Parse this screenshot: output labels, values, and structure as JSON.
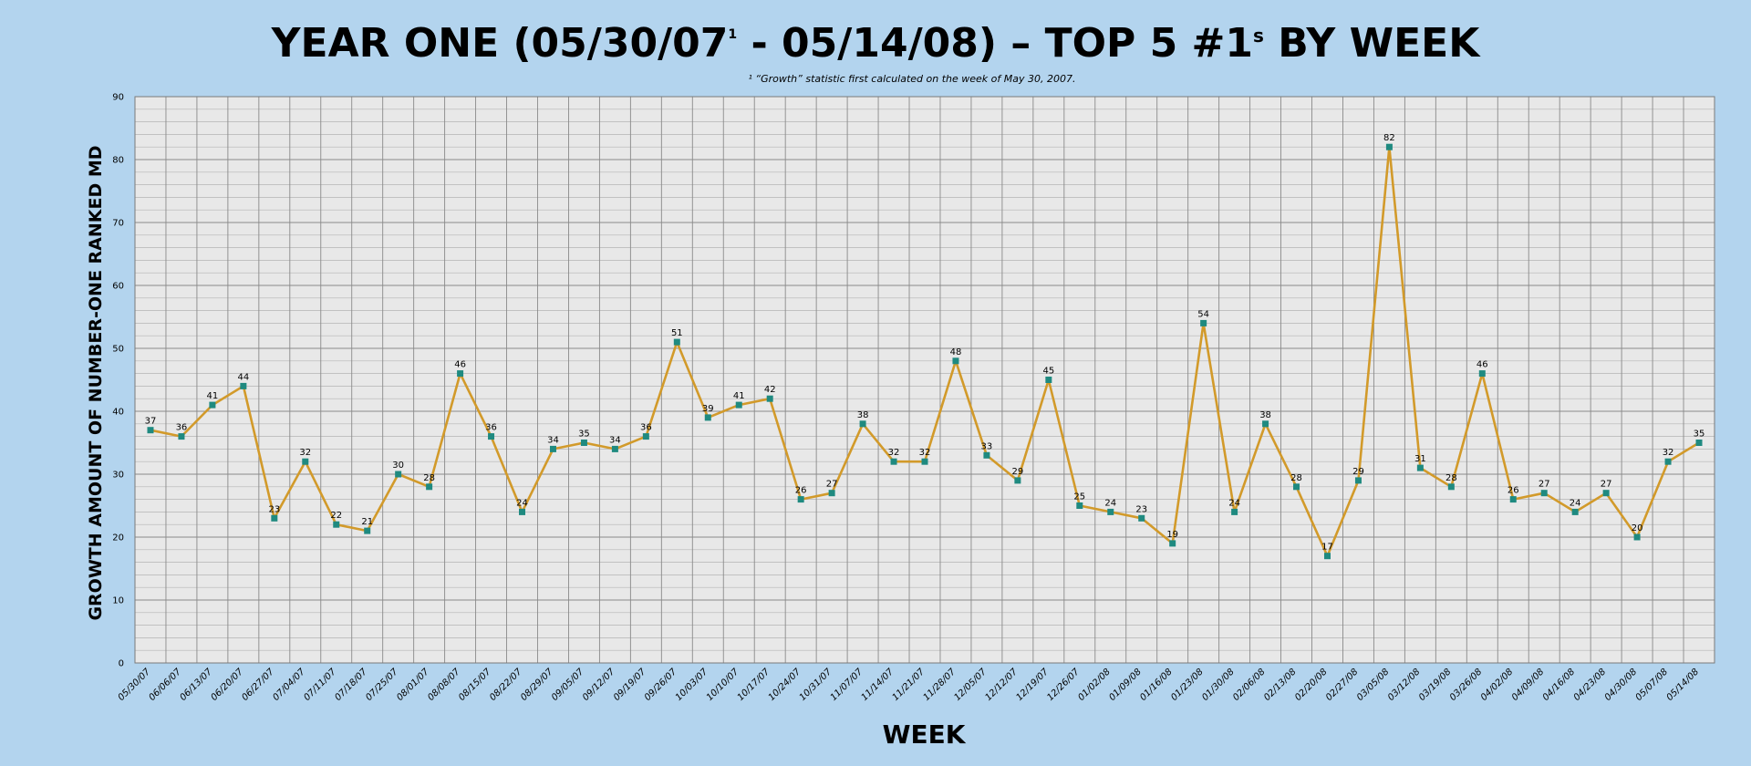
{
  "chart_data": {
    "type": "line",
    "title_parts": {
      "a": "YEAR ONE (05/30/07",
      "sup1": "1",
      "b": " - 05/14/08) – TOP 5 #1",
      "sup2": "s",
      "c": " BY WEEK"
    },
    "footnote": "¹ “Growth” statistic first calculated on the week of May 30, 2007.",
    "xlabel": "WEEK",
    "ylabel": "GROWTH AMOUNT OF NUMBER-ONE RANKED MD",
    "ylim": [
      0,
      90
    ],
    "ytick_step": 10,
    "yminor_step": 2,
    "grid": true,
    "colors": {
      "background": "#b3d4ee",
      "plot_area": "#e8e8e8",
      "line": "#d29a2a",
      "marker": "#1f8a80",
      "grid_major": "#8a8a8a",
      "grid_minor": "#b4b4b4"
    },
    "categories": [
      "05/30/07",
      "06/06/07",
      "06/13/07",
      "06/20/07",
      "06/27/07",
      "07/04/07",
      "07/11/07",
      "07/18/07",
      "07/25/07",
      "08/01/07",
      "08/08/07",
      "08/15/07",
      "08/22/07",
      "08/29/07",
      "09/05/07",
      "09/12/07",
      "09/19/07",
      "09/26/07",
      "10/03/07",
      "10/10/07",
      "10/17/07",
      "10/24/07",
      "10/31/07",
      "11/07/07",
      "11/14/07",
      "11/21/07",
      "11/28/07",
      "12/05/07",
      "12/12/07",
      "12/19/07",
      "12/26/07",
      "01/02/08",
      "01/09/08",
      "01/16/08",
      "01/23/08",
      "01/30/08",
      "02/06/08",
      "02/13/08",
      "02/20/08",
      "02/27/08",
      "03/05/08",
      "03/12/08",
      "03/19/08",
      "03/26/08",
      "04/02/08",
      "04/09/08",
      "04/16/08",
      "04/23/08",
      "04/30/08",
      "05/07/08",
      "05/14/08"
    ],
    "values": [
      37,
      36,
      41,
      44,
      23,
      32,
      22,
      21,
      30,
      28,
      46,
      36,
      24,
      34,
      35,
      34,
      36,
      51,
      39,
      41,
      42,
      26,
      27,
      38,
      32,
      32,
      48,
      33,
      29,
      45,
      25,
      24,
      23,
      19,
      54,
      24,
      38,
      28,
      17,
      29,
      82,
      31,
      28,
      46,
      26,
      27,
      24,
      27,
      20,
      32,
      35
    ]
  }
}
